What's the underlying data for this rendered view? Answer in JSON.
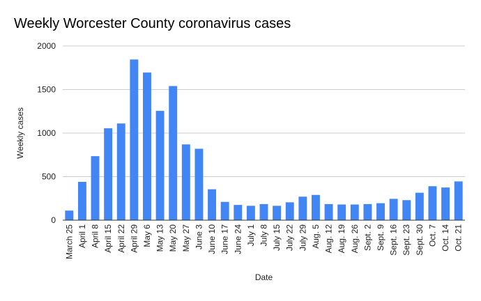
{
  "chart_data": {
    "type": "bar",
    "title": "Weekly Worcester County coronavirus cases",
    "xlabel": "Date",
    "ylabel": "Weekly cases",
    "ylim": [
      0,
      2000
    ],
    "yticks": [
      0,
      500,
      1000,
      1500,
      2000
    ],
    "grid": true,
    "bar_color": "#4285f4",
    "categories": [
      "March 25",
      "April 1",
      "April 8",
      "April 15",
      "April 22",
      "April 29",
      "May 6",
      "May 13",
      "May 20",
      "May 27",
      "June 3",
      "June 10",
      "June 17",
      "June 24",
      "July 1",
      "July 8",
      "July 15",
      "July 22",
      "July 29",
      "Aug. 5",
      "Aug. 12",
      "Aug. 19",
      "Aug. 26",
      "Sept. 2",
      "Sept. 9",
      "Sept. 16",
      "Sept. 23",
      "Sept. 30",
      "Oct. 7",
      "Oct. 14",
      "Oct. 21"
    ],
    "values": [
      110,
      440,
      735,
      1055,
      1110,
      1845,
      1695,
      1255,
      1540,
      870,
      820,
      355,
      210,
      175,
      165,
      185,
      165,
      205,
      270,
      290,
      185,
      180,
      180,
      185,
      195,
      245,
      230,
      315,
      390,
      375,
      445
    ]
  }
}
